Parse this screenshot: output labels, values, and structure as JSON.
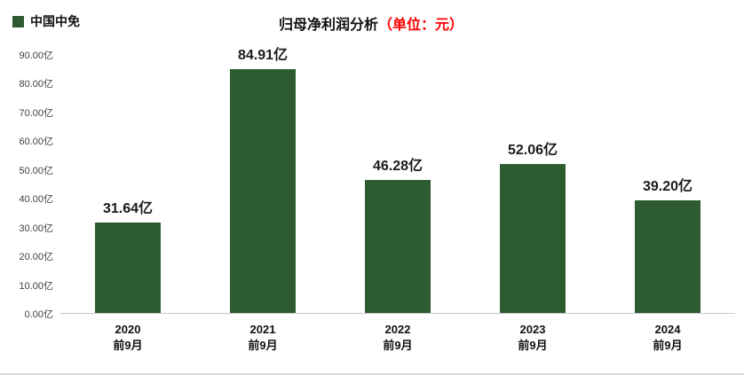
{
  "legend": {
    "label": "中国中免",
    "color": "#2e5c31"
  },
  "title": {
    "main": "归母净利润分析",
    "unit": "（单位：元）"
  },
  "chart_data": {
    "type": "bar",
    "title": "归母净利润分析（单位：元）",
    "legend": [
      "中国中免"
    ],
    "legend_position": "top-left",
    "categories": [
      "2020",
      "2021",
      "2022",
      "2023",
      "2024"
    ],
    "category_sub_label": "前9月",
    "values": [
      31.64,
      84.91,
      46.28,
      52.06,
      39.2
    ],
    "data_labels": [
      "31.64亿",
      "84.91亿",
      "46.28亿",
      "52.06亿",
      "39.20亿"
    ],
    "y_ticks": [
      "90.00亿",
      "80.00亿",
      "70.00亿",
      "60.00亿",
      "50.00亿",
      "40.00亿",
      "30.00亿",
      "20.00亿",
      "10.00亿",
      "0.00亿"
    ],
    "ylim": [
      0,
      90
    ],
    "xlabel": "",
    "ylabel": "",
    "grid": false,
    "bar_color": "#2e5c31"
  }
}
